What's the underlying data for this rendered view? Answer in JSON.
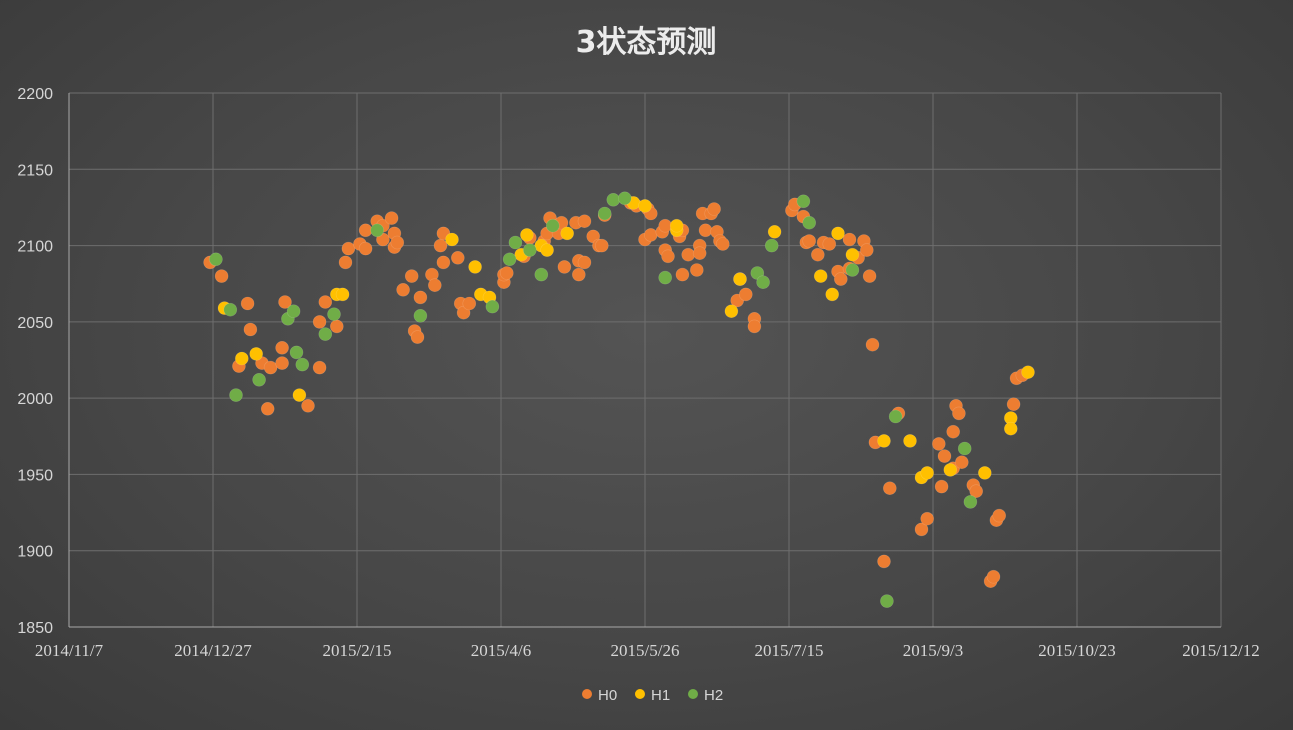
{
  "chart_data": {
    "type": "scatter",
    "title": "3状态预测",
    "xlabel": "",
    "ylabel": "",
    "xlim": [
      "2014-11-07",
      "2015-12-12"
    ],
    "ylim": [
      1850,
      2200
    ],
    "x_tick_labels": [
      "2014/11/7",
      "2014/12/27",
      "2015/2/15",
      "2015/4/6",
      "2015/5/26",
      "2015/7/15",
      "2015/9/3",
      "2015/10/23",
      "2015/12/12"
    ],
    "y_tick_labels": [
      "1850",
      "1900",
      "1950",
      "2000",
      "2050",
      "2100",
      "2150",
      "2200"
    ],
    "grid": true,
    "legend_position": "bottom",
    "series": [
      {
        "name": "H0",
        "color": "#ed7d31",
        "points": [
          [
            "2014-12-26",
            2089
          ],
          [
            "2014-12-30",
            2080
          ],
          [
            "2015-01-05",
            2021
          ],
          [
            "2015-01-08",
            2062
          ],
          [
            "2015-01-09",
            2045
          ],
          [
            "2015-01-13",
            2023
          ],
          [
            "2015-01-15",
            1993
          ],
          [
            "2015-01-16",
            2020
          ],
          [
            "2015-01-20",
            2023
          ],
          [
            "2015-01-20",
            2033
          ],
          [
            "2015-01-21",
            2063
          ],
          [
            "2015-01-29",
            1995
          ],
          [
            "2015-02-02",
            2020
          ],
          [
            "2015-02-02",
            2050
          ],
          [
            "2015-02-04",
            2063
          ],
          [
            "2015-02-08",
            2047
          ],
          [
            "2015-02-11",
            2089
          ],
          [
            "2015-02-12",
            2098
          ],
          [
            "2015-02-16",
            2101
          ],
          [
            "2015-02-18",
            2098
          ],
          [
            "2015-02-18",
            2110
          ],
          [
            "2015-02-22",
            2116
          ],
          [
            "2015-02-24",
            2104
          ],
          [
            "2015-02-24",
            2113
          ],
          [
            "2015-02-27",
            2118
          ],
          [
            "2015-02-28",
            2099
          ],
          [
            "2015-02-28",
            2108
          ],
          [
            "2015-03-01",
            2102
          ],
          [
            "2015-03-03",
            2071
          ],
          [
            "2015-03-06",
            2080
          ],
          [
            "2015-03-07",
            2044
          ],
          [
            "2015-03-08",
            2040
          ],
          [
            "2015-03-09",
            2066
          ],
          [
            "2015-03-13",
            2081
          ],
          [
            "2015-03-14",
            2074
          ],
          [
            "2015-03-16",
            2100
          ],
          [
            "2015-03-17",
            2089
          ],
          [
            "2015-03-17",
            2108
          ],
          [
            "2015-03-22",
            2092
          ],
          [
            "2015-03-23",
            2062
          ],
          [
            "2015-03-24",
            2056
          ],
          [
            "2015-03-26",
            2062
          ],
          [
            "2015-04-07",
            2076
          ],
          [
            "2015-04-07",
            2081
          ],
          [
            "2015-04-08",
            2082
          ],
          [
            "2015-04-14",
            2093
          ],
          [
            "2015-04-16",
            2105
          ],
          [
            "2015-04-21",
            2103
          ],
          [
            "2015-04-22",
            2108
          ],
          [
            "2015-04-23",
            2118
          ],
          [
            "2015-04-26",
            2108
          ],
          [
            "2015-04-27",
            2115
          ],
          [
            "2015-04-28",
            2086
          ],
          [
            "2015-05-02",
            2115
          ],
          [
            "2015-05-03",
            2081
          ],
          [
            "2015-05-03",
            2090
          ],
          [
            "2015-05-05",
            2089
          ],
          [
            "2015-05-05",
            2116
          ],
          [
            "2015-05-08",
            2106
          ],
          [
            "2015-05-10",
            2100
          ],
          [
            "2015-05-11",
            2100
          ],
          [
            "2015-05-12",
            2120
          ],
          [
            "2015-05-21",
            2128
          ],
          [
            "2015-05-23",
            2126
          ],
          [
            "2015-05-26",
            2104
          ],
          [
            "2015-05-27",
            2124
          ],
          [
            "2015-05-28",
            2107
          ],
          [
            "2015-05-28",
            2121
          ],
          [
            "2015-06-01",
            2109
          ],
          [
            "2015-06-02",
            2113
          ],
          [
            "2015-06-02",
            2097
          ],
          [
            "2015-06-03",
            2093
          ],
          [
            "2015-06-07",
            2106
          ],
          [
            "2015-06-08",
            2110
          ],
          [
            "2015-06-08",
            2081
          ],
          [
            "2015-06-10",
            2094
          ],
          [
            "2015-06-13",
            2084
          ],
          [
            "2015-06-14",
            2100
          ],
          [
            "2015-06-14",
            2095
          ],
          [
            "2015-06-15",
            2121
          ],
          [
            "2015-06-16",
            2110
          ],
          [
            "2015-06-18",
            2121
          ],
          [
            "2015-06-19",
            2124
          ],
          [
            "2015-06-20",
            2109
          ],
          [
            "2015-06-21",
            2103
          ],
          [
            "2015-06-22",
            2101
          ],
          [
            "2015-06-27",
            2064
          ],
          [
            "2015-06-28",
            2078
          ],
          [
            "2015-06-30",
            2068
          ],
          [
            "2015-07-03",
            2052
          ],
          [
            "2015-07-03",
            2047
          ],
          [
            "2015-07-16",
            2123
          ],
          [
            "2015-07-17",
            2127
          ],
          [
            "2015-07-20",
            2119
          ],
          [
            "2015-07-21",
            2102
          ],
          [
            "2015-07-22",
            2103
          ],
          [
            "2015-07-25",
            2094
          ],
          [
            "2015-07-27",
            2102
          ],
          [
            "2015-07-29",
            2101
          ],
          [
            "2015-08-01",
            2083
          ],
          [
            "2015-08-02",
            2078
          ],
          [
            "2015-08-05",
            2104
          ],
          [
            "2015-08-05",
            2085
          ],
          [
            "2015-08-08",
            2092
          ],
          [
            "2015-08-10",
            2103
          ],
          [
            "2015-08-11",
            2097
          ],
          [
            "2015-08-12",
            2080
          ],
          [
            "2015-08-13",
            2035
          ],
          [
            "2015-08-14",
            1971
          ],
          [
            "2015-08-17",
            1893
          ],
          [
            "2015-08-19",
            1941
          ],
          [
            "2015-08-22",
            1990
          ],
          [
            "2015-08-30",
            1914
          ],
          [
            "2015-09-01",
            1921
          ],
          [
            "2015-09-05",
            1970
          ],
          [
            "2015-09-06",
            1942
          ],
          [
            "2015-09-07",
            1962
          ],
          [
            "2015-09-10",
            1954
          ],
          [
            "2015-09-10",
            1978
          ],
          [
            "2015-09-11",
            1995
          ],
          [
            "2015-09-12",
            1990
          ],
          [
            "2015-09-13",
            1958
          ],
          [
            "2015-09-17",
            1943
          ],
          [
            "2015-09-18",
            1939
          ],
          [
            "2015-09-23",
            1880
          ],
          [
            "2015-09-24",
            1883
          ],
          [
            "2015-09-25",
            1920
          ],
          [
            "2015-09-26",
            1923
          ],
          [
            "2015-10-01",
            1996
          ],
          [
            "2015-10-02",
            2013
          ],
          [
            "2015-10-04",
            2015
          ]
        ]
      },
      {
        "name": "H1",
        "color": "#ffc000",
        "points": [
          [
            "2014-12-31",
            2059
          ],
          [
            "2015-01-06",
            2026
          ],
          [
            "2015-01-11",
            2029
          ],
          [
            "2015-01-26",
            2002
          ],
          [
            "2015-02-08",
            2068
          ],
          [
            "2015-02-10",
            2068
          ],
          [
            "2015-03-20",
            2104
          ],
          [
            "2015-03-28",
            2086
          ],
          [
            "2015-03-30",
            2068
          ],
          [
            "2015-04-02",
            2066
          ],
          [
            "2015-04-13",
            2094
          ],
          [
            "2015-04-15",
            2107
          ],
          [
            "2015-04-20",
            2100
          ],
          [
            "2015-04-22",
            2097
          ],
          [
            "2015-04-29",
            2108
          ],
          [
            "2015-05-22",
            2128
          ],
          [
            "2015-05-26",
            2126
          ],
          [
            "2015-06-06",
            2110
          ],
          [
            "2015-06-06",
            2113
          ],
          [
            "2015-06-25",
            2057
          ],
          [
            "2015-06-28",
            2078
          ],
          [
            "2015-07-10",
            2109
          ],
          [
            "2015-07-26",
            2080
          ],
          [
            "2015-07-30",
            2068
          ],
          [
            "2015-08-01",
            2108
          ],
          [
            "2015-08-06",
            2094
          ],
          [
            "2015-08-17",
            1972
          ],
          [
            "2015-08-26",
            1972
          ],
          [
            "2015-08-30",
            1948
          ],
          [
            "2015-09-01",
            1951
          ],
          [
            "2015-09-09",
            1953
          ],
          [
            "2015-09-21",
            1951
          ],
          [
            "2015-09-30",
            1987
          ],
          [
            "2015-09-30",
            1980
          ],
          [
            "2015-10-06",
            2017
          ]
        ]
      },
      {
        "name": "H2",
        "color": "#70ad47",
        "points": [
          [
            "2014-12-28",
            2091
          ],
          [
            "2015-01-02",
            2058
          ],
          [
            "2015-01-04",
            2002
          ],
          [
            "2015-01-12",
            2012
          ],
          [
            "2015-01-22",
            2052
          ],
          [
            "2015-01-24",
            2057
          ],
          [
            "2015-01-25",
            2030
          ],
          [
            "2015-01-27",
            2022
          ],
          [
            "2015-02-04",
            2042
          ],
          [
            "2015-02-07",
            2055
          ],
          [
            "2015-02-22",
            2110
          ],
          [
            "2015-03-09",
            2054
          ],
          [
            "2015-04-03",
            2060
          ],
          [
            "2015-04-09",
            2091
          ],
          [
            "2015-04-11",
            2102
          ],
          [
            "2015-04-16",
            2097
          ],
          [
            "2015-04-20",
            2081
          ],
          [
            "2015-04-24",
            2113
          ],
          [
            "2015-05-12",
            2121
          ],
          [
            "2015-05-15",
            2130
          ],
          [
            "2015-05-19",
            2131
          ],
          [
            "2015-06-02",
            2079
          ],
          [
            "2015-07-04",
            2082
          ],
          [
            "2015-07-06",
            2076
          ],
          [
            "2015-07-09",
            2100
          ],
          [
            "2015-07-20",
            2129
          ],
          [
            "2015-07-22",
            2115
          ],
          [
            "2015-08-06",
            2084
          ],
          [
            "2015-08-18",
            1867
          ],
          [
            "2015-08-21",
            1988
          ],
          [
            "2015-09-14",
            1967
          ],
          [
            "2015-09-16",
            1932
          ]
        ]
      }
    ]
  }
}
